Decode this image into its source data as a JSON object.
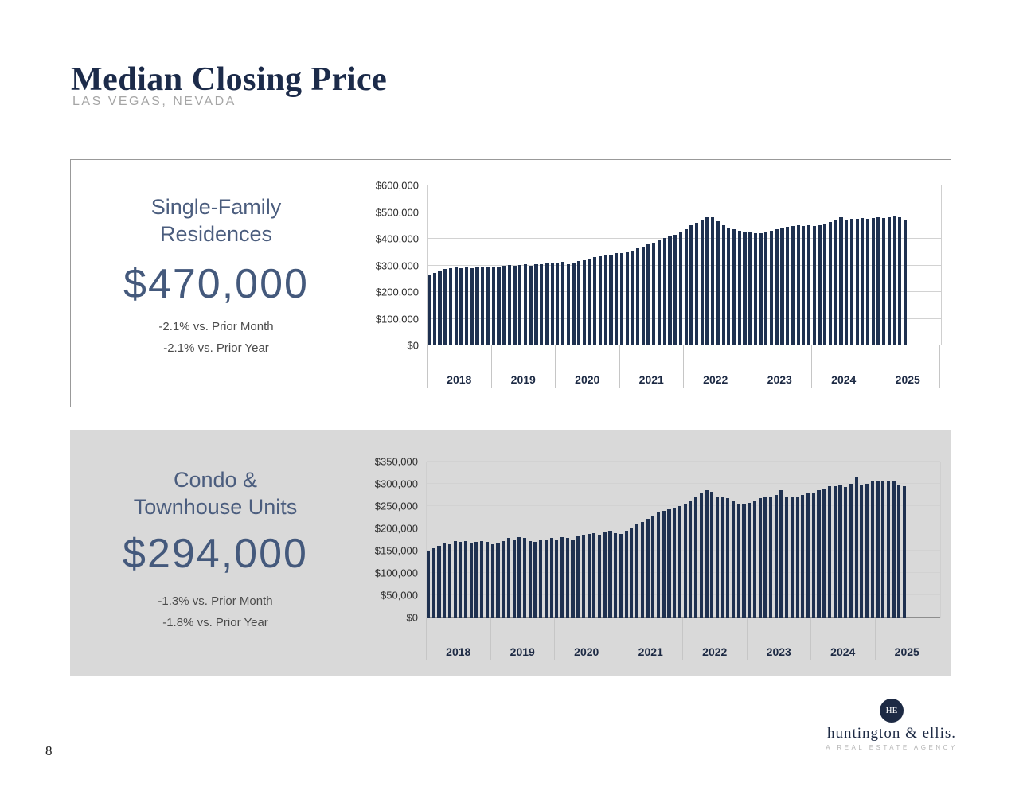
{
  "page": {
    "title": "Median Closing Price",
    "subtitle": "LAS VEGAS, NEVADA",
    "page_number": "8"
  },
  "logo": {
    "monogram": "HE",
    "name": "huntington & ellis.",
    "tagline": "A REAL ESTATE AGENCY"
  },
  "colors": {
    "navy": "#1c2b4a",
    "slate_heading": "#4b5d7e",
    "panel_gray": "#d9d9d9",
    "bar_navy": "#1f3150"
  },
  "panels": [
    {
      "id": "single-family",
      "heading_line1": "Single-Family",
      "heading_line2": "Residences",
      "price": "$470,000",
      "delta_month": "-2.1% vs. Prior Month",
      "delta_year": "-2.1% vs. Prior Year"
    },
    {
      "id": "condo-townhouse",
      "heading_line1": "Condo &",
      "heading_line2": "Townhouse Units",
      "price": "$294,000",
      "delta_month": "-1.3% vs. Prior Month",
      "delta_year": "-1.8%  vs. Prior Year"
    }
  ],
  "chart_data": [
    {
      "type": "bar",
      "title": "Single-Family Residences median closing price by month",
      "ylabel": "",
      "xlabel": "",
      "ylim": [
        0,
        600000
      ],
      "ytick_labels": [
        "$0",
        "$100,000",
        "$200,000",
        "$300,000",
        "$400,000",
        "$500,000",
        "$600,000"
      ],
      "year_labels": [
        "2018",
        "2019",
        "2020",
        "2021",
        "2022",
        "2023",
        "2024",
        "2025"
      ],
      "months_per_year": 12,
      "grid": true,
      "legend": "none",
      "bar_color": "#1f3150",
      "values": [
        265000,
        272000,
        280000,
        287000,
        290000,
        292000,
        290000,
        293000,
        290000,
        292000,
        294000,
        295000,
        296000,
        294000,
        299000,
        302000,
        300000,
        303000,
        305000,
        300000,
        304000,
        305000,
        307000,
        310000,
        310000,
        313000,
        306000,
        308000,
        315000,
        320000,
        325000,
        330000,
        335000,
        338000,
        340000,
        345000,
        345000,
        350000,
        356000,
        363000,
        370000,
        378000,
        386000,
        395000,
        404000,
        410000,
        416000,
        425000,
        435000,
        450000,
        460000,
        470000,
        480000,
        482000,
        465000,
        450000,
        440000,
        435000,
        430000,
        425000,
        425000,
        421000,
        420000,
        426000,
        430000,
        436000,
        440000,
        445000,
        448000,
        450000,
        447000,
        450000,
        449000,
        452000,
        457000,
        462000,
        468000,
        480000,
        473000,
        475000,
        476000,
        478000,
        475000,
        478000,
        480000,
        478000,
        482000,
        485000,
        480000,
        470000
      ]
    },
    {
      "type": "bar",
      "title": "Condo & Townhouse Units median closing price by month",
      "ylabel": "",
      "xlabel": "",
      "ylim": [
        0,
        350000
      ],
      "ytick_labels": [
        "$0",
        "$50,000",
        "$100,000",
        "$150,000",
        "$200,000",
        "$250,000",
        "$300,000",
        "$350,000"
      ],
      "year_labels": [
        "2018",
        "2019",
        "2020",
        "2021",
        "2022",
        "2023",
        "2024",
        "2025"
      ],
      "months_per_year": 12,
      "grid": true,
      "legend": "none",
      "bar_color": "#1f3150",
      "values": [
        150000,
        155000,
        161000,
        168000,
        165000,
        172000,
        170000,
        172000,
        168000,
        170000,
        172000,
        170000,
        165000,
        168000,
        172000,
        178000,
        175000,
        180000,
        178000,
        172000,
        170000,
        173000,
        175000,
        178000,
        175000,
        180000,
        178000,
        175000,
        182000,
        185000,
        188000,
        190000,
        185000,
        192000,
        195000,
        190000,
        188000,
        195000,
        200000,
        210000,
        215000,
        221000,
        228000,
        235000,
        240000,
        242000,
        245000,
        250000,
        255000,
        262000,
        270000,
        278000,
        285000,
        283000,
        272000,
        270000,
        268000,
        262000,
        256000,
        255000,
        258000,
        262000,
        268000,
        270000,
        272000,
        275000,
        285000,
        272000,
        270000,
        272000,
        275000,
        278000,
        280000,
        285000,
        290000,
        294000,
        295000,
        299000,
        292000,
        300000,
        315000,
        298000,
        300000,
        305000,
        308000,
        305000,
        307000,
        305000,
        298000,
        294000
      ]
    }
  ]
}
